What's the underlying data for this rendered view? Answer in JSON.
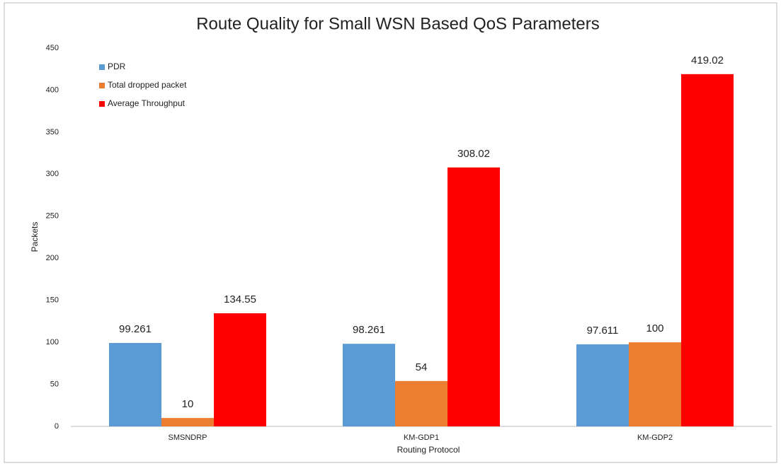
{
  "chart_data": {
    "type": "bar",
    "title": "Route Quality for Small WSN Based QoS Parameters",
    "xlabel": "Routing Protocol",
    "ylabel": "Packets",
    "categories": [
      "SMSNDRP",
      "KM-GDP1",
      "KM-GDP2"
    ],
    "series": [
      {
        "name": "PDR",
        "color": "#5b9bd5",
        "values": [
          99.261,
          98.261,
          97.611
        ]
      },
      {
        "name": "Total dropped packet",
        "color": "#ed7d31",
        "values": [
          10,
          54,
          100
        ]
      },
      {
        "name": "Average Throughput",
        "color": "#ff0000",
        "values": [
          134.55,
          308.02,
          419.02
        ]
      }
    ],
    "ylim": [
      0,
      450
    ],
    "yticks": [
      0,
      50,
      100,
      150,
      200,
      250,
      300,
      350,
      400,
      450
    ],
    "grid": false,
    "legend": "top-left"
  }
}
